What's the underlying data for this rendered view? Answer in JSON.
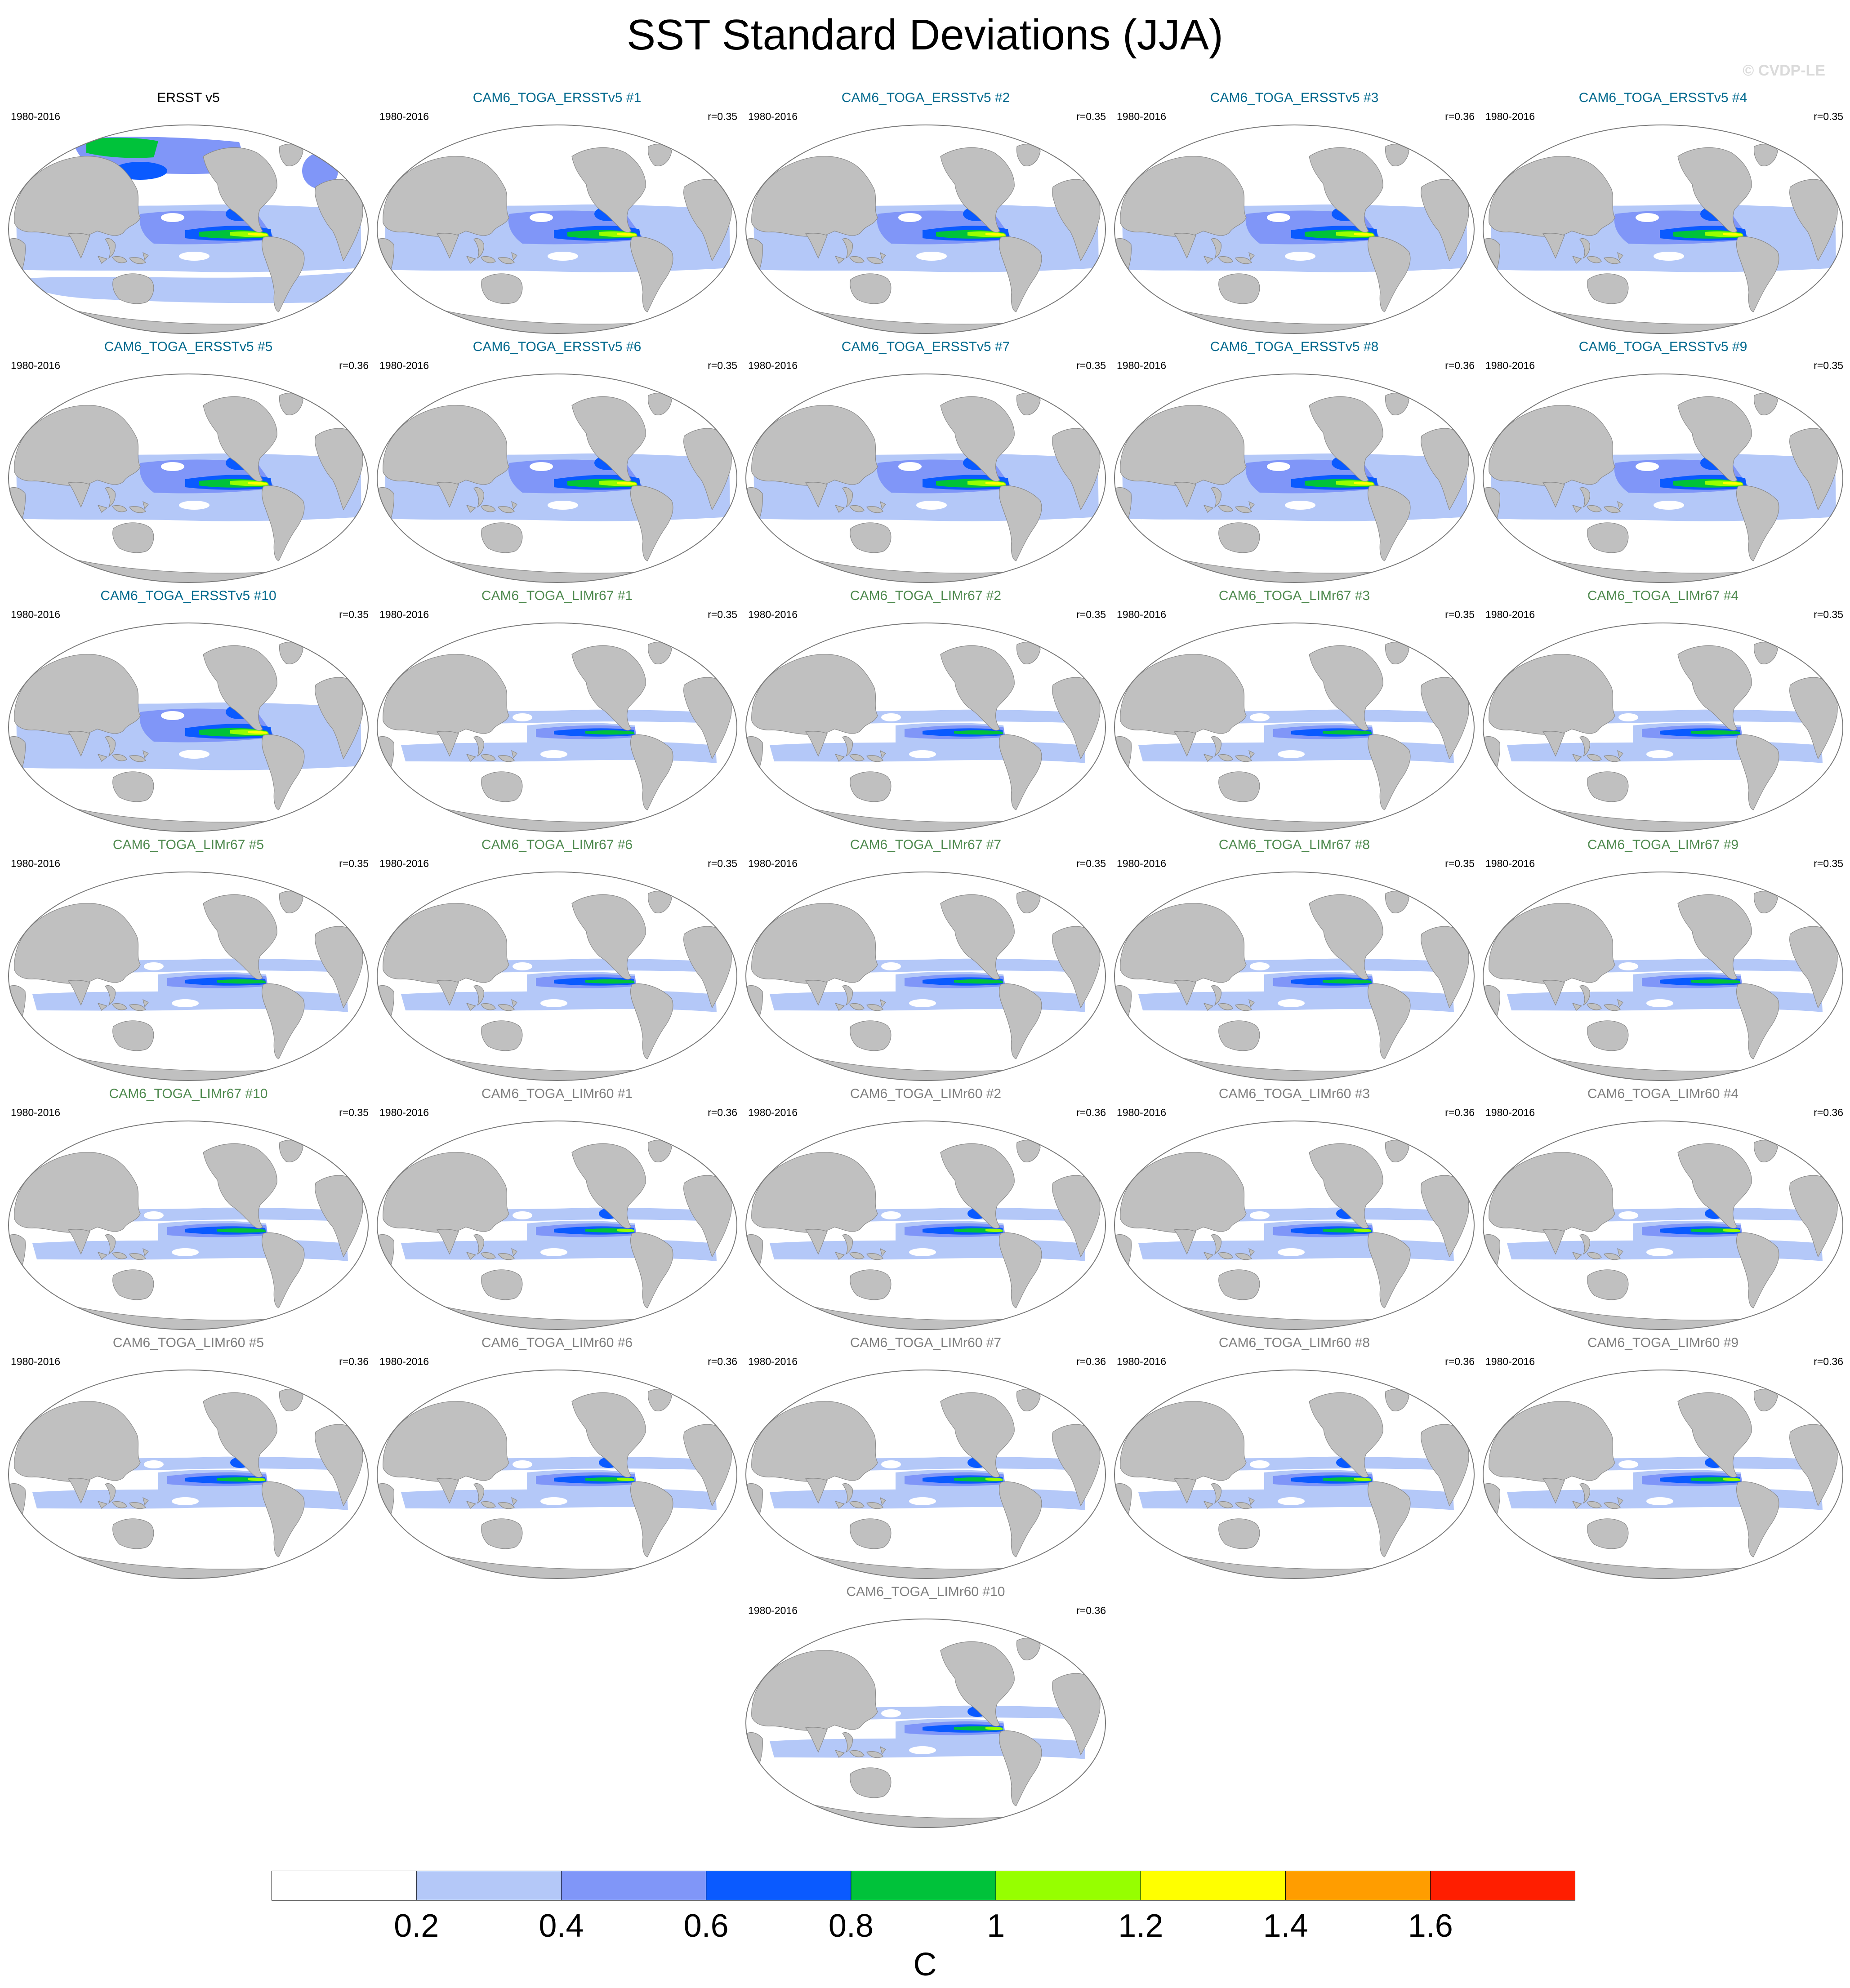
{
  "title": "SST Standard Deviations (JJA)",
  "watermark": "© CVDP-LE",
  "colors": {
    "land": "#c0c0c0",
    "ocean_base": "#ffffff",
    "outline": "#7a7a7a",
    "title_obs": "#000000",
    "title_ersst": "#006a8e",
    "title_lim67": "#4f8a4f",
    "title_lim60": "#7f7f7f"
  },
  "chart_data": {
    "type": "heatmap",
    "variable": "SST standard deviation",
    "season": "JJA",
    "projection": "global map, Pacific-centered",
    "colorbar": {
      "unit": "C",
      "ticks": [
        "0.2",
        "0.4",
        "0.6",
        "0.8",
        "1",
        "1.2",
        "1.4",
        "1.6"
      ],
      "levels": [
        0.2,
        0.4,
        0.6,
        0.8,
        1.0,
        1.2,
        1.4,
        1.6
      ],
      "colors": [
        "#ffffff",
        "#b4c8f8",
        "#8096f8",
        "#0a5aff",
        "#00c23a",
        "#96ff00",
        "#ffff00",
        "#ff9d00",
        "#ff1e00"
      ]
    },
    "panels": [
      {
        "title": "ERSST v5",
        "years": "1980-2016",
        "r": "",
        "group": "obs"
      },
      {
        "title": "CAM6_TOGA_ERSSTv5 #1",
        "years": "1980-2016",
        "r": "r=0.35",
        "group": "ersst"
      },
      {
        "title": "CAM6_TOGA_ERSSTv5 #2",
        "years": "1980-2016",
        "r": "r=0.35",
        "group": "ersst"
      },
      {
        "title": "CAM6_TOGA_ERSSTv5 #3",
        "years": "1980-2016",
        "r": "r=0.36",
        "group": "ersst"
      },
      {
        "title": "CAM6_TOGA_ERSSTv5 #4",
        "years": "1980-2016",
        "r": "r=0.35",
        "group": "ersst"
      },
      {
        "title": "CAM6_TOGA_ERSSTv5 #5",
        "years": "1980-2016",
        "r": "r=0.36",
        "group": "ersst"
      },
      {
        "title": "CAM6_TOGA_ERSSTv5 #6",
        "years": "1980-2016",
        "r": "r=0.35",
        "group": "ersst"
      },
      {
        "title": "CAM6_TOGA_ERSSTv5 #7",
        "years": "1980-2016",
        "r": "r=0.35",
        "group": "ersst"
      },
      {
        "title": "CAM6_TOGA_ERSSTv5 #8",
        "years": "1980-2016",
        "r": "r=0.36",
        "group": "ersst"
      },
      {
        "title": "CAM6_TOGA_ERSSTv5 #9",
        "years": "1980-2016",
        "r": "r=0.35",
        "group": "ersst"
      },
      {
        "title": "CAM6_TOGA_ERSSTv5 #10",
        "years": "1980-2016",
        "r": "r=0.35",
        "group": "ersst"
      },
      {
        "title": "CAM6_TOGA_LIMr67 #1",
        "years": "1980-2016",
        "r": "r=0.35",
        "group": "lim67"
      },
      {
        "title": "CAM6_TOGA_LIMr67 #2",
        "years": "1980-2016",
        "r": "r=0.35",
        "group": "lim67"
      },
      {
        "title": "CAM6_TOGA_LIMr67 #3",
        "years": "1980-2016",
        "r": "r=0.35",
        "group": "lim67"
      },
      {
        "title": "CAM6_TOGA_LIMr67 #4",
        "years": "1980-2016",
        "r": "r=0.35",
        "group": "lim67"
      },
      {
        "title": "CAM6_TOGA_LIMr67 #5",
        "years": "1980-2016",
        "r": "r=0.35",
        "group": "lim67"
      },
      {
        "title": "CAM6_TOGA_LIMr67 #6",
        "years": "1980-2016",
        "r": "r=0.35",
        "group": "lim67"
      },
      {
        "title": "CAM6_TOGA_LIMr67 #7",
        "years": "1980-2016",
        "r": "r=0.35",
        "group": "lim67"
      },
      {
        "title": "CAM6_TOGA_LIMr67 #8",
        "years": "1980-2016",
        "r": "r=0.35",
        "group": "lim67"
      },
      {
        "title": "CAM6_TOGA_LIMr67 #9",
        "years": "1980-2016",
        "r": "r=0.35",
        "group": "lim67"
      },
      {
        "title": "CAM6_TOGA_LIMr67 #10",
        "years": "1980-2016",
        "r": "r=0.35",
        "group": "lim67"
      },
      {
        "title": "CAM6_TOGA_LIMr60 #1",
        "years": "1980-2016",
        "r": "r=0.36",
        "group": "lim60"
      },
      {
        "title": "CAM6_TOGA_LIMr60 #2",
        "years": "1980-2016",
        "r": "r=0.36",
        "group": "lim60"
      },
      {
        "title": "CAM6_TOGA_LIMr60 #3",
        "years": "1980-2016",
        "r": "r=0.36",
        "group": "lim60"
      },
      {
        "title": "CAM6_TOGA_LIMr60 #4",
        "years": "1980-2016",
        "r": "r=0.36",
        "group": "lim60"
      },
      {
        "title": "CAM6_TOGA_LIMr60 #5",
        "years": "1980-2016",
        "r": "r=0.36",
        "group": "lim60"
      },
      {
        "title": "CAM6_TOGA_LIMr60 #6",
        "years": "1980-2016",
        "r": "r=0.36",
        "group": "lim60"
      },
      {
        "title": "CAM6_TOGA_LIMr60 #7",
        "years": "1980-2016",
        "r": "r=0.36",
        "group": "lim60"
      },
      {
        "title": "CAM6_TOGA_LIMr60 #8",
        "years": "1980-2016",
        "r": "r=0.36",
        "group": "lim60"
      },
      {
        "title": "CAM6_TOGA_LIMr60 #9",
        "years": "1980-2016",
        "r": "r=0.36",
        "group": "lim60"
      },
      {
        "title": "CAM6_TOGA_LIMr60 #10",
        "years": "1980-2016",
        "r": "r=0.36",
        "group": "lim60"
      }
    ]
  }
}
